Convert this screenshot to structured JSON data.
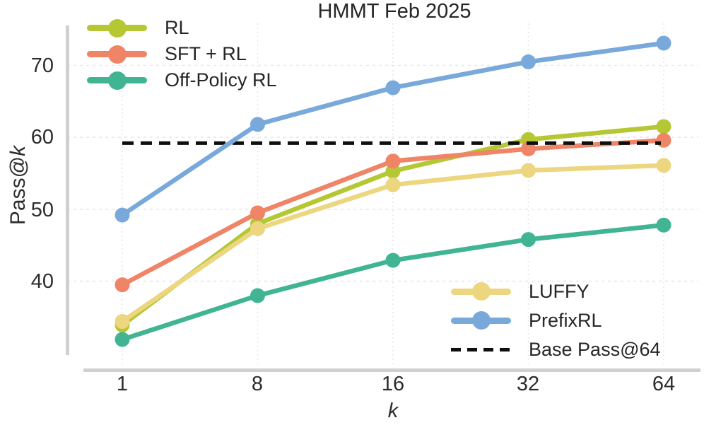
{
  "chart_data": {
    "type": "line",
    "title": "HMMT Feb 2025",
    "xlabel": "k",
    "ylabel": "Pass@k",
    "x": [
      1,
      8,
      16,
      32,
      64
    ],
    "xticklabels": [
      "1",
      "8",
      "16",
      "32",
      "64"
    ],
    "yticks": [
      40,
      50,
      60,
      70
    ],
    "yticklabels": [
      "70",
      "60",
      "50",
      "40"
    ],
    "ylim": [
      30,
      75
    ],
    "grid": true,
    "legend_positions": {
      "top_left": [
        "RL",
        "SFT + RL",
        "Off-Policy RL"
      ],
      "bottom_right": [
        "LUFFY",
        "PrefixRL",
        "Base Pass@64"
      ]
    },
    "series": [
      {
        "name": "RL",
        "color": "#b5c733",
        "values": [
          33.9,
          48.0,
          55.3,
          59.7,
          61.5
        ]
      },
      {
        "name": "SFT + RL",
        "color": "#ef8467",
        "values": [
          39.5,
          49.5,
          56.7,
          58.4,
          59.6
        ]
      },
      {
        "name": "Off-Policy RL",
        "color": "#41b494",
        "values": [
          31.9,
          38.0,
          42.9,
          45.8,
          47.8
        ]
      },
      {
        "name": "LUFFY",
        "color": "#ecd680",
        "values": [
          34.4,
          47.3,
          53.4,
          55.4,
          56.1
        ]
      },
      {
        "name": "PrefixRL",
        "color": "#79a9db",
        "values": [
          49.2,
          61.8,
          66.9,
          70.5,
          73.1
        ]
      }
    ],
    "baseline": {
      "name": "Base Pass@64",
      "value": 59.2,
      "color": "#0f0f0f",
      "style": "dashed"
    }
  },
  "labels": {
    "ylabel_prefix": "Pass@",
    "ylabel_italic": "k",
    "xlabel_italic": "k"
  },
  "style": {
    "grid_color": "#e8e8e8",
    "spine_color": "#d0d0d0",
    "text_color": "#2d2d2d"
  }
}
